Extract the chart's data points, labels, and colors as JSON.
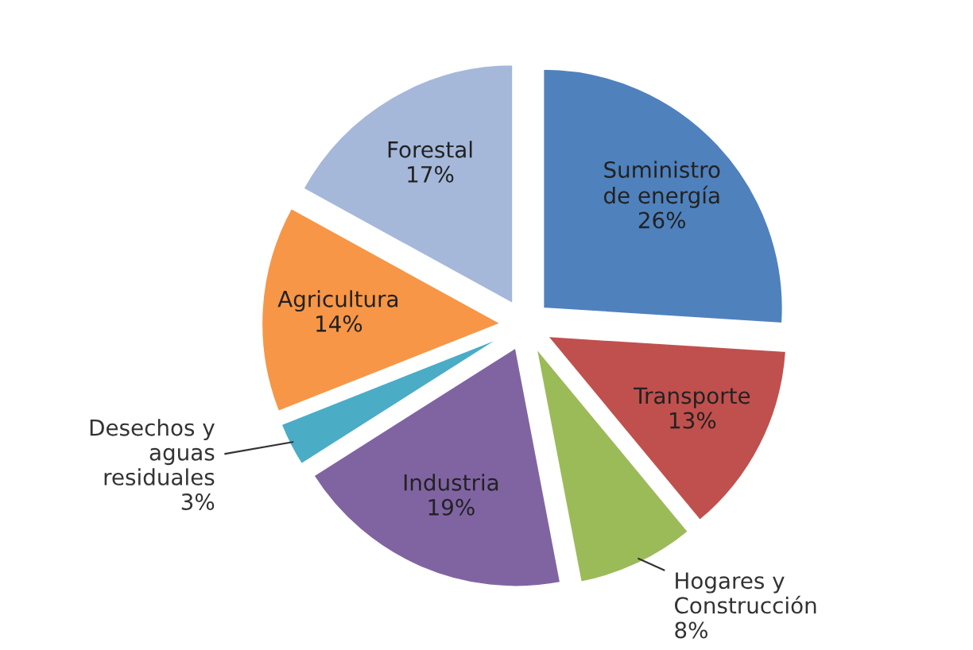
{
  "chart_data": {
    "type": "pie",
    "categories": [
      "Suministro\nde energía",
      "Transporte",
      "Hogares y\nConstrucción",
      "Industria",
      "Desechos y\naguas\nresiduales",
      "Agricultura",
      "Forestal"
    ],
    "values": [
      26,
      13,
      8,
      19,
      3,
      14,
      17
    ],
    "value_labels": [
      "26%",
      "13%",
      "8%",
      "19%",
      "3%",
      "14%",
      "17%"
    ],
    "colors": [
      "#4f81bd",
      "#c0504d",
      "#9bbb59",
      "#8064a2",
      "#4bacc6",
      "#f79646",
      "#a5b8da"
    ]
  }
}
